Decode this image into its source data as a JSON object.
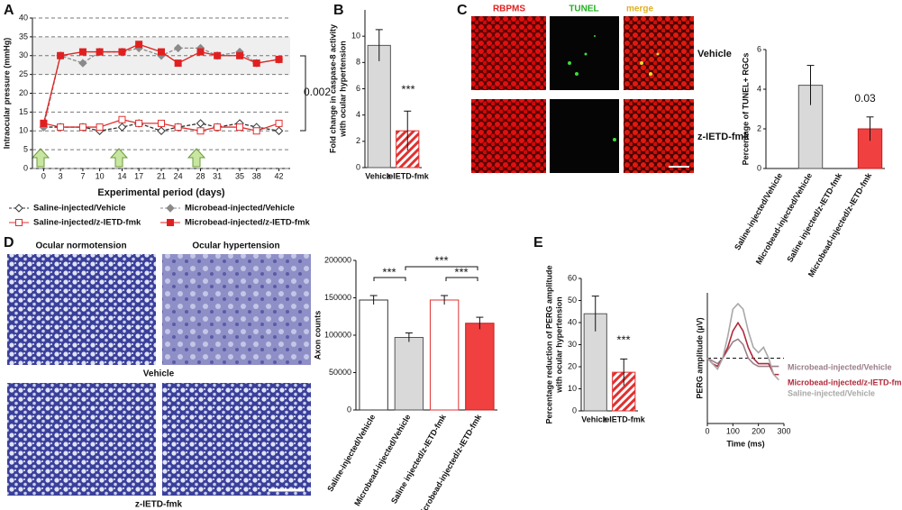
{
  "figure": {
    "panel_labels": [
      "A",
      "B",
      "C",
      "D",
      "E"
    ],
    "c_images": {
      "columns": [
        "RBPMS",
        "TUNEL",
        "merge"
      ],
      "rows": [
        "Vehicle",
        "z-IETD-fmk"
      ]
    },
    "d_images": {
      "columns": [
        "Ocular normotension",
        "Ocular hypertension"
      ],
      "rows": [
        "Vehicle",
        "z-IETD-fmk"
      ]
    }
  },
  "chart_data": [
    {
      "type": "line",
      "ylabel": [
        "Intraocular pressure (mmHg)"
      ],
      "xlabel": "Experimental period (days)",
      "x": [
        0,
        3,
        7,
        10,
        14,
        17,
        21,
        24,
        28,
        31,
        35,
        38,
        42
      ],
      "xlim": [
        -2,
        44
      ],
      "xticks": [
        0,
        3,
        7,
        10,
        14,
        17,
        21,
        24,
        28,
        31,
        35,
        38,
        42
      ],
      "ylim": [
        0,
        40
      ],
      "yticks": [
        0,
        5,
        10,
        15,
        20,
        25,
        30,
        35,
        40
      ],
      "grid": true,
      "annotations": [
        "0.002"
      ],
      "series": [
        {
          "name": "Saline-injected/Vehicle",
          "color": "#333333",
          "marker": "diamond-open",
          "dashed": true,
          "values": [
            11,
            11,
            11,
            10,
            11,
            12,
            10,
            11,
            12,
            11,
            12,
            11,
            10
          ]
        },
        {
          "name": "Microbead-injected/Vehicle",
          "color": "#8a8a8a",
          "marker": "diamond-filled",
          "dashed": true,
          "values": [
            11,
            30,
            28,
            31,
            31,
            32,
            30,
            32,
            32,
            30,
            31,
            28,
            29
          ]
        },
        {
          "name": "Saline-injected/z-IETD-fmk",
          "color": "#e03030",
          "marker": "square-open",
          "dashed": false,
          "values": [
            12,
            11,
            11,
            11,
            13,
            12,
            12,
            11,
            10,
            11,
            11,
            10,
            12
          ]
        },
        {
          "name": "Microbead-injected/z-IETD-fmk",
          "color": "#e02020",
          "marker": "square-filled",
          "dashed": false,
          "values": [
            12,
            30,
            31,
            31,
            31,
            33,
            31,
            28,
            31,
            30,
            30,
            28,
            29
          ]
        }
      ]
    },
    {
      "type": "bar",
      "ylabel": [
        "Fold change in caspase-8 activity",
        "with ocular hypertension"
      ],
      "categories": [
        "Vehicle",
        "z-IETD-fmk"
      ],
      "values": [
        9.3,
        2.8
      ],
      "errors": [
        1.2,
        1.5
      ],
      "colors": [
        "#d9d9d9",
        "#ffffff"
      ],
      "edgecolors": [
        "#555555",
        "#e03030"
      ],
      "hatch": [
        false,
        true
      ],
      "ylim": [
        0,
        12
      ],
      "yticks": [
        0,
        2,
        4,
        6,
        8,
        10
      ],
      "annotations": [
        "***"
      ]
    },
    {
      "type": "bar",
      "ylabel": [
        "Percentage of TUNEL+ RGCs"
      ],
      "categories": [
        "Saline-injected/Vehicle",
        "Microbead-injected/Vehicle",
        "Saline injected/z-IETD-fmk",
        "Microbead-injected/z-IETD-fmk"
      ],
      "values": [
        0,
        4.2,
        0,
        2.0
      ],
      "errors": [
        0,
        1.0,
        0,
        0.6
      ],
      "colors": [
        "#ffffff",
        "#d9d9d9",
        "#ffffff",
        "#f04040"
      ],
      "edgecolors": [
        "#555555",
        "#555555",
        "#555555",
        "#c02020"
      ],
      "hatch": [
        false,
        false,
        false,
        false
      ],
      "ylim": [
        0,
        6
      ],
      "yticks": [
        0,
        2,
        4,
        6
      ],
      "rotate_labels": true,
      "annotations": [
        "0.03"
      ]
    },
    {
      "type": "bar",
      "ylabel": [
        "Axon counts"
      ],
      "categories": [
        "Saline-injected/Vehicle",
        "Microbead-injected/Vehicle",
        "Saline injected/z-IETD-fmk",
        "Microbead-injected/z-IETD-fmk"
      ],
      "values": [
        147000,
        97000,
        147000,
        116000
      ],
      "errors": [
        6000,
        6000,
        6000,
        8000
      ],
      "colors": [
        "#ffffff",
        "#d9d9d9",
        "#ffffff",
        "#f04040"
      ],
      "edgecolors": [
        "#333333",
        "#555555",
        "#e03030",
        "#c02020"
      ],
      "hatch": [
        false,
        false,
        false,
        false
      ],
      "ylim": [
        0,
        200000
      ],
      "yticks": [
        0,
        50000,
        100000,
        150000,
        200000
      ],
      "rotate_labels": true,
      "annotations": [
        "***",
        "***",
        "***"
      ]
    },
    {
      "type": "bar",
      "ylabel": [
        "Percentage reduction of PERG amplitude",
        "with ocular hypertension"
      ],
      "categories": [
        "Vehicle",
        "z-IETD-fmk"
      ],
      "values": [
        44,
        17.5
      ],
      "errors": [
        8,
        6
      ],
      "colors": [
        "#d9d9d9",
        "#ffffff"
      ],
      "edgecolors": [
        "#555555",
        "#e03030"
      ],
      "hatch": [
        false,
        true
      ],
      "ylim": [
        0,
        60
      ],
      "yticks": [
        0,
        10,
        20,
        30,
        40,
        50,
        60
      ],
      "annotations": [
        "***"
      ]
    },
    {
      "type": "line",
      "ylabel": [
        "PERG amplitude (µV)"
      ],
      "xlabel": "Time (ms)",
      "x": [
        0,
        20,
        40,
        60,
        80,
        100,
        120,
        140,
        160,
        180,
        200,
        220,
        240,
        260,
        280
      ],
      "xlim": [
        0,
        300
      ],
      "xticks": [
        0,
        100,
        200,
        300
      ],
      "ylim": [
        -12,
        12
      ],
      "yticks": [],
      "grid": false,
      "series": [
        {
          "name": "Microbead-injected/Vehicle",
          "color": "#9a7f8a",
          "values": [
            0,
            -0.5,
            -1,
            0,
            1.5,
            3,
            3.5,
            2.5,
            0,
            -1,
            -1.5,
            -1.5,
            -1.5,
            -1.5,
            -1.5
          ]
        },
        {
          "name": "Microbead-injected/z-IETD-fmk",
          "color": "#b02a3a",
          "values": [
            0,
            -1,
            -1.5,
            0,
            2,
            5,
            6.5,
            5,
            2,
            0,
            -1,
            -1,
            -1,
            -3,
            -3
          ]
        },
        {
          "name": "Saline-injected/Vehicle",
          "color": "#a8a8a8",
          "values": [
            0,
            -1,
            -2,
            0,
            4,
            9,
            10,
            9,
            5,
            2,
            1,
            2,
            0,
            -3,
            -4
          ]
        }
      ]
    }
  ]
}
